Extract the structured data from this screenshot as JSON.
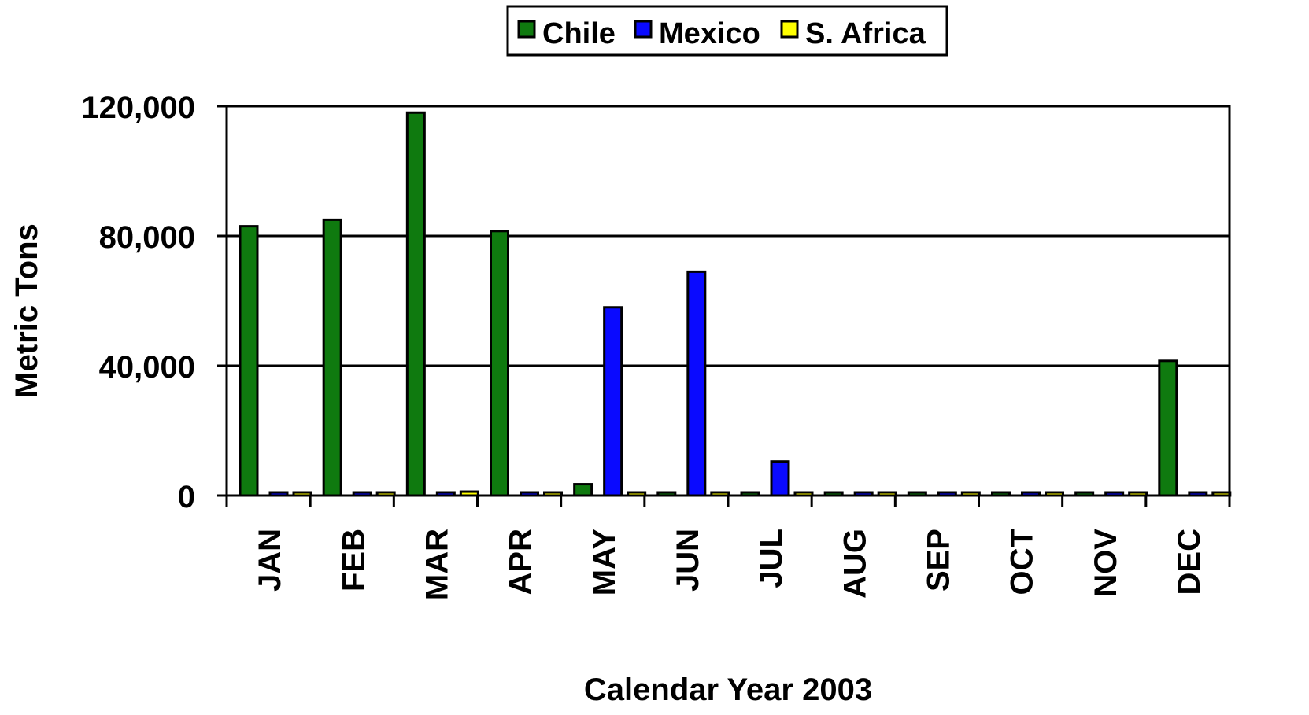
{
  "chart_data": {
    "type": "bar",
    "xlabel": "Calendar Year 2003",
    "ylabel": "Metric Tons",
    "ylim": [
      0,
      120000
    ],
    "yticks": [
      0,
      40000,
      80000,
      120000
    ],
    "ytick_labels": [
      "0",
      "40,000",
      "80,000",
      "120,000"
    ],
    "grid": true,
    "legend_position": "top-center",
    "categories": [
      "JAN",
      "FEB",
      "MAR",
      "APR",
      "MAY",
      "JUN",
      "JUL",
      "AUG",
      "SEP",
      "OCT",
      "NOV",
      "DEC"
    ],
    "series": [
      {
        "name": "Chile",
        "color": "#0f7a0f",
        "values": [
          83000,
          85000,
          118000,
          81500,
          3500,
          300,
          0,
          0,
          0,
          0,
          0,
          41500
        ]
      },
      {
        "name": "Mexico",
        "color": "#0a0aff",
        "values": [
          0,
          0,
          0,
          0,
          58000,
          69000,
          10500,
          0,
          0,
          0,
          0,
          0
        ]
      },
      {
        "name": "S. Africa",
        "color": "#ffff00",
        "values": [
          0,
          600,
          1200,
          0,
          0,
          0,
          0,
          0,
          0,
          0,
          300,
          0
        ]
      }
    ]
  }
}
